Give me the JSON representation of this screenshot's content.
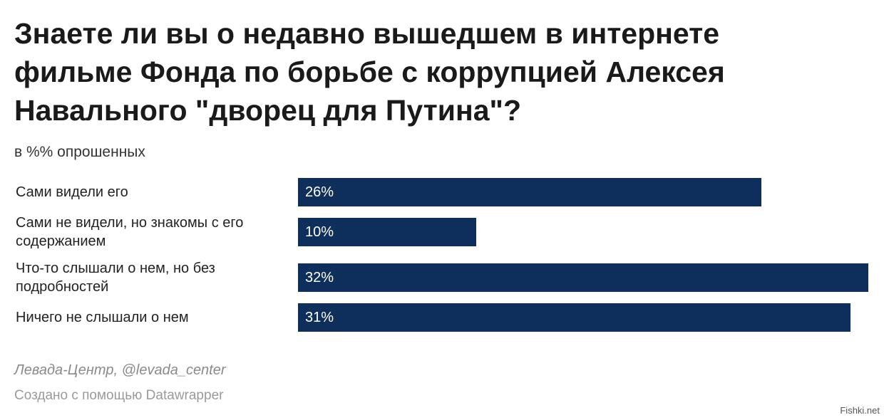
{
  "header": {
    "title": "Знаете ли вы о недавно вышедшем в интернете фильме Фонда по борьбе с коррупцией Алексея Навального \"дворец для Путина\"?",
    "subtitle": "в %% опрошенных"
  },
  "footer": {
    "source": "Левада-Центр, @levada_center",
    "credit": "Создано с помощью Datawrapper",
    "watermark": "Fishki.net"
  },
  "colors": {
    "bar": "#0e2f5b"
  },
  "chart_data": {
    "type": "bar",
    "orientation": "horizontal",
    "categories": [
      "Сами видели его",
      "Сами не видели, но знакомы с его содержанием",
      "Что-то слышали о нем, но без подробностей",
      "Ничего не слышали о нем"
    ],
    "values": [
      26,
      10,
      32,
      31
    ],
    "value_labels": [
      "26%",
      "10%",
      "32%",
      "31%"
    ],
    "xlim": [
      0,
      32
    ],
    "grid": false,
    "legend": "none"
  }
}
